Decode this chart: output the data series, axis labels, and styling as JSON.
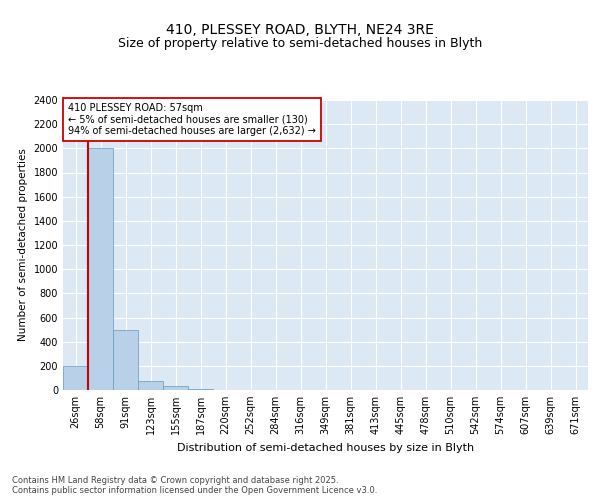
{
  "title": "410, PLESSEY ROAD, BLYTH, NE24 3RE",
  "subtitle": "Size of property relative to semi-detached houses in Blyth",
  "xlabel": "Distribution of semi-detached houses by size in Blyth",
  "ylabel": "Number of semi-detached properties",
  "bin_labels": [
    "26sqm",
    "58sqm",
    "91sqm",
    "123sqm",
    "155sqm",
    "187sqm",
    "220sqm",
    "252sqm",
    "284sqm",
    "316sqm",
    "349sqm",
    "381sqm",
    "413sqm",
    "445sqm",
    "478sqm",
    "510sqm",
    "542sqm",
    "574sqm",
    "607sqm",
    "639sqm",
    "671sqm"
  ],
  "bar_values": [
    200,
    2000,
    500,
    75,
    30,
    10,
    0,
    0,
    0,
    0,
    0,
    0,
    0,
    0,
    0,
    0,
    0,
    0,
    0,
    0,
    0
  ],
  "bar_color": "#b8d0e8",
  "bar_edge_color": "#6699bb",
  "background_color": "#dce9f5",
  "grid_color": "#ffffff",
  "ylim": [
    0,
    2400
  ],
  "yticks": [
    0,
    200,
    400,
    600,
    800,
    1000,
    1200,
    1400,
    1600,
    1800,
    2000,
    2200,
    2400
  ],
  "red_line_color": "#cc0000",
  "annotation_text": "410 PLESSEY ROAD: 57sqm\n← 5% of semi-detached houses are smaller (130)\n94% of semi-detached houses are larger (2,632) →",
  "annotation_box_color": "#ffffff",
  "annotation_box_edge": "#cc0000",
  "footer_text": "Contains HM Land Registry data © Crown copyright and database right 2025.\nContains public sector information licensed under the Open Government Licence v3.0.",
  "title_fontsize": 10,
  "subtitle_fontsize": 9,
  "tick_fontsize": 7,
  "ylabel_fontsize": 7.5,
  "xlabel_fontsize": 8,
  "annotation_fontsize": 7,
  "footer_fontsize": 6
}
